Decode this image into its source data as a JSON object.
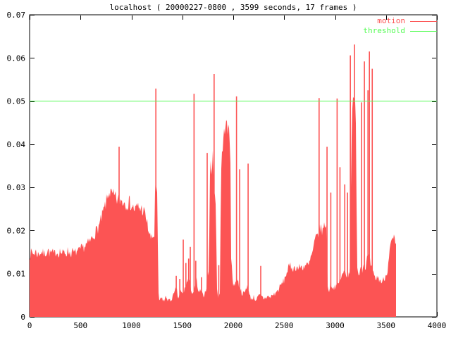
{
  "title": "localhost ( 20000227-0800 , 3599 seconds, 17 frames )",
  "legend": {
    "items": [
      {
        "label": "motion",
        "color": "#fc5454"
      },
      {
        "label": "threshold",
        "color": "#54fc54"
      }
    ]
  },
  "colors": {
    "background": "#ffffff",
    "border": "#000000",
    "text": "#000000",
    "motion": "#fc5454",
    "threshold": "#54fc54"
  },
  "chart_data": {
    "type": "area",
    "title": "localhost ( 20000227-0800 , 3599 seconds, 17 frames )",
    "xlabel": "",
    "ylabel": "",
    "xlim": [
      0,
      4000
    ],
    "ylim": [
      0,
      0.07
    ],
    "x_ticks": [
      0,
      500,
      1000,
      1500,
      2000,
      2500,
      3000,
      3500,
      4000
    ],
    "y_ticks": [
      0,
      0.01,
      0.02,
      0.03,
      0.04,
      0.05,
      0.06,
      0.07
    ],
    "x_tick_labels": [
      "0",
      "500",
      "1000",
      "1500",
      "2000",
      "2500",
      "3000",
      "3500",
      "4000"
    ],
    "y_tick_labels": [
      "0",
      "0.01",
      "0.02",
      "0.03",
      "0.04",
      "0.05",
      "0.06",
      "0.07"
    ],
    "grid": false,
    "legend_position": "top-right",
    "x_data_end": 3599,
    "series": [
      {
        "name": "motion",
        "type": "impulse-area",
        "color": "#fc5454",
        "points": [
          [
            0,
            0.0143
          ],
          [
            20,
            0.015
          ],
          [
            40,
            0.0146
          ],
          [
            60,
            0.0152
          ],
          [
            80,
            0.0144
          ],
          [
            100,
            0.0148
          ],
          [
            120,
            0.0151
          ],
          [
            140,
            0.0145
          ],
          [
            160,
            0.0149
          ],
          [
            180,
            0.0155
          ],
          [
            200,
            0.0146
          ],
          [
            220,
            0.015
          ],
          [
            240,
            0.0144
          ],
          [
            260,
            0.0152
          ],
          [
            280,
            0.0147
          ],
          [
            300,
            0.0153
          ],
          [
            320,
            0.0146
          ],
          [
            340,
            0.015
          ],
          [
            360,
            0.0148
          ],
          [
            380,
            0.0154
          ],
          [
            400,
            0.0146
          ],
          [
            420,
            0.0151
          ],
          [
            440,
            0.0147
          ],
          [
            460,
            0.0152
          ],
          [
            480,
            0.015
          ],
          [
            500,
            0.0156
          ],
          [
            520,
            0.016
          ],
          [
            540,
            0.0163
          ],
          [
            560,
            0.0168
          ],
          [
            580,
            0.0171
          ],
          [
            600,
            0.0178
          ],
          [
            620,
            0.0185
          ],
          [
            640,
            0.0194
          ],
          [
            660,
            0.0202
          ],
          [
            680,
            0.021
          ],
          [
            700,
            0.0223
          ],
          [
            720,
            0.024
          ],
          [
            740,
            0.0256
          ],
          [
            760,
            0.0272
          ],
          [
            780,
            0.0292
          ],
          [
            800,
            0.0284
          ],
          [
            820,
            0.028
          ],
          [
            840,
            0.0276
          ],
          [
            860,
            0.0271
          ],
          [
            880,
            0.0272
          ],
          [
            900,
            0.027
          ],
          [
            920,
            0.0268
          ],
          [
            940,
            0.0265
          ],
          [
            960,
            0.0263
          ],
          [
            980,
            0.0266
          ],
          [
            1000,
            0.0258
          ],
          [
            1020,
            0.0252
          ],
          [
            1040,
            0.0248
          ],
          [
            1060,
            0.0256
          ],
          [
            1080,
            0.0252
          ],
          [
            1100,
            0.025
          ],
          [
            1120,
            0.0245
          ],
          [
            1140,
            0.0232
          ],
          [
            1160,
            0.021
          ],
          [
            1180,
            0.0188
          ],
          [
            1200,
            0.0178
          ],
          [
            1215,
            0.019
          ],
          [
            1226,
            0.0185
          ],
          [
            1232,
            0.03
          ],
          [
            1238,
            0.031
          ],
          [
            1244,
            0.03
          ],
          [
            1250,
            0.0295
          ],
          [
            1256,
            0.024
          ],
          [
            1262,
            0.01
          ],
          [
            1268,
            0.004
          ],
          [
            1280,
            0.0038
          ],
          [
            1300,
            0.0044
          ],
          [
            1320,
            0.0036
          ],
          [
            1340,
            0.0047
          ],
          [
            1360,
            0.004
          ],
          [
            1380,
            0.0036
          ],
          [
            1400,
            0.0045
          ],
          [
            1420,
            0.0052
          ],
          [
            1440,
            0.0068
          ],
          [
            1460,
            0.0042
          ],
          [
            1480,
            0.006
          ],
          [
            1500,
            0.0052
          ],
          [
            1520,
            0.0062
          ],
          [
            1540,
            0.0075
          ],
          [
            1560,
            0.009
          ],
          [
            1580,
            0.007
          ],
          [
            1600,
            0.0055
          ],
          [
            1620,
            0.006
          ],
          [
            1640,
            0.0085
          ],
          [
            1660,
            0.0052
          ],
          [
            1680,
            0.0063
          ],
          [
            1700,
            0.0048
          ],
          [
            1720,
            0.0055
          ],
          [
            1736,
            0.0068
          ],
          [
            1742,
            0.009
          ],
          [
            1746,
            0.012
          ],
          [
            1752,
            0.0095
          ],
          [
            1762,
            0.011
          ],
          [
            1768,
            0.03
          ],
          [
            1778,
            0.0355
          ],
          [
            1790,
            0.034
          ],
          [
            1800,
            0.037
          ],
          [
            1806,
            0.0345
          ],
          [
            1812,
            0.031
          ],
          [
            1818,
            0.0295
          ],
          [
            1826,
            0.026
          ],
          [
            1832,
            0.021
          ],
          [
            1838,
            0.0075
          ],
          [
            1848,
            0.005
          ],
          [
            1856,
            0.0048
          ],
          [
            1866,
            0.0052
          ],
          [
            1872,
            0.006
          ],
          [
            1878,
            0.034
          ],
          [
            1884,
            0.036
          ],
          [
            1892,
            0.038
          ],
          [
            1900,
            0.04
          ],
          [
            1908,
            0.042
          ],
          [
            1916,
            0.0438
          ],
          [
            1924,
            0.0452
          ],
          [
            1932,
            0.0448
          ],
          [
            1940,
            0.0435
          ],
          [
            1948,
            0.0428
          ],
          [
            1956,
            0.044
          ],
          [
            1964,
            0.0415
          ],
          [
            1970,
            0.0385
          ],
          [
            1974,
            0.036
          ],
          [
            1978,
            0.015
          ],
          [
            1990,
            0.009
          ],
          [
            2000,
            0.0075
          ],
          [
            2020,
            0.008
          ],
          [
            2040,
            0.009
          ],
          [
            2060,
            0.007
          ],
          [
            2080,
            0.0058
          ],
          [
            2100,
            0.0052
          ],
          [
            2120,
            0.006
          ],
          [
            2140,
            0.0075
          ],
          [
            2160,
            0.0048
          ],
          [
            2180,
            0.0042
          ],
          [
            2200,
            0.0046
          ],
          [
            2220,
            0.004
          ],
          [
            2240,
            0.0044
          ],
          [
            2260,
            0.005
          ],
          [
            2280,
            0.0047
          ],
          [
            2300,
            0.0042
          ],
          [
            2320,
            0.0045
          ],
          [
            2340,
            0.0048
          ],
          [
            2360,
            0.0044
          ],
          [
            2380,
            0.005
          ],
          [
            2400,
            0.0052
          ],
          [
            2420,
            0.0056
          ],
          [
            2440,
            0.0062
          ],
          [
            2460,
            0.007
          ],
          [
            2480,
            0.0078
          ],
          [
            2500,
            0.0085
          ],
          [
            2520,
            0.01
          ],
          [
            2540,
            0.0112
          ],
          [
            2560,
            0.0118
          ],
          [
            2580,
            0.0114
          ],
          [
            2600,
            0.0112
          ],
          [
            2620,
            0.0116
          ],
          [
            2640,
            0.0112
          ],
          [
            2660,
            0.0117
          ],
          [
            2680,
            0.0114
          ],
          [
            2700,
            0.0119
          ],
          [
            2720,
            0.0121
          ],
          [
            2740,
            0.0118
          ],
          [
            2760,
            0.0135
          ],
          [
            2780,
            0.015
          ],
          [
            2800,
            0.0175
          ],
          [
            2820,
            0.0185
          ],
          [
            2840,
            0.0195
          ],
          [
            2860,
            0.0205
          ],
          [
            2880,
            0.02
          ],
          [
            2900,
            0.0215
          ],
          [
            2915,
            0.0218
          ],
          [
            2925,
            0.007
          ],
          [
            2940,
            0.0062
          ],
          [
            2960,
            0.0078
          ],
          [
            2980,
            0.0066
          ],
          [
            3000,
            0.0072
          ],
          [
            3015,
            0.0068
          ],
          [
            3030,
            0.0075
          ],
          [
            3050,
            0.0088
          ],
          [
            3070,
            0.0095
          ],
          [
            3090,
            0.0105
          ],
          [
            3110,
            0.01
          ],
          [
            3130,
            0.0095
          ],
          [
            3148,
            0.011
          ],
          [
            3154,
            0.028
          ],
          [
            3160,
            0.04
          ],
          [
            3168,
            0.046
          ],
          [
            3176,
            0.0495
          ],
          [
            3184,
            0.0505
          ],
          [
            3192,
            0.0495
          ],
          [
            3200,
            0.048
          ],
          [
            3206,
            0.046
          ],
          [
            3212,
            0.023
          ],
          [
            3218,
            0.012
          ],
          [
            3230,
            0.0095
          ],
          [
            3245,
            0.011
          ],
          [
            3258,
            0.0125
          ],
          [
            3270,
            0.0105
          ],
          [
            3285,
            0.013
          ],
          [
            3300,
            0.011
          ],
          [
            3315,
            0.0135
          ],
          [
            3330,
            0.014
          ],
          [
            3345,
            0.0125
          ],
          [
            3360,
            0.011
          ],
          [
            3380,
            0.0095
          ],
          [
            3400,
            0.0088
          ],
          [
            3420,
            0.0092
          ],
          [
            3440,
            0.0085
          ],
          [
            3460,
            0.008
          ],
          [
            3480,
            0.0088
          ],
          [
            3500,
            0.0096
          ],
          [
            3515,
            0.011
          ],
          [
            3530,
            0.0145
          ],
          [
            3545,
            0.0165
          ],
          [
            3560,
            0.0175
          ],
          [
            3575,
            0.0182
          ],
          [
            3590,
            0.017
          ],
          [
            3599,
            0.016
          ]
        ],
        "spikes": [
          [
            879,
            0.0394
          ],
          [
            1240,
            0.0529
          ],
          [
            1440,
            0.0095
          ],
          [
            1475,
            0.0088
          ],
          [
            1509,
            0.0179
          ],
          [
            1535,
            0.0125
          ],
          [
            1562,
            0.0135
          ],
          [
            1578,
            0.0162
          ],
          [
            1615,
            0.0517
          ],
          [
            1632,
            0.013
          ],
          [
            1688,
            0.0092
          ],
          [
            1744,
            0.038
          ],
          [
            1812,
            0.0563
          ],
          [
            1858,
            0.012
          ],
          [
            2032,
            0.0511
          ],
          [
            2063,
            0.0342
          ],
          [
            2146,
            0.0355
          ],
          [
            2270,
            0.0118
          ],
          [
            2843,
            0.0507
          ],
          [
            2921,
            0.0394
          ],
          [
            2958,
            0.0288
          ],
          [
            3020,
            0.0506
          ],
          [
            3048,
            0.0347
          ],
          [
            3095,
            0.0307
          ],
          [
            3122,
            0.0288
          ],
          [
            3150,
            0.0606
          ],
          [
            3191,
            0.0631
          ],
          [
            3260,
            0.0497
          ],
          [
            3288,
            0.0592
          ],
          [
            3323,
            0.0525
          ],
          [
            3337,
            0.0615
          ],
          [
            3365,
            0.0575
          ]
        ]
      },
      {
        "name": "threshold",
        "type": "hline",
        "color": "#54fc54",
        "value": 0.05
      }
    ]
  }
}
